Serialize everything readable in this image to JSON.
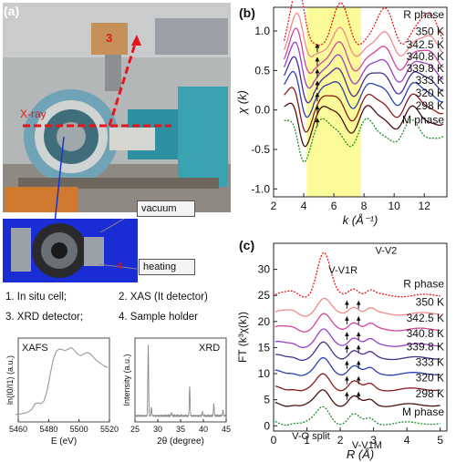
{
  "panel_a": {
    "label": "(a)",
    "photo_labels": {
      "detector_num": "3",
      "xray": "X-ray"
    },
    "cell_labels": {
      "vacuum": "vacuum",
      "heating": "heating",
      "num4": "4"
    },
    "legend": [
      "1. In situ cell;",
      "2. XAS (It detector)",
      "3. XRD detector;",
      "4. Sample holder"
    ],
    "colors": {
      "photo_bg": "#a9acad",
      "cell_bg": "#1a2cd4",
      "arrow": "#e4161c"
    }
  },
  "panel_b": {
    "label": "(b)"
  },
  "panel_c": {
    "label": "(c)"
  },
  "chart_data": [
    {
      "type": "line",
      "id": "xafs",
      "title": "XAFS",
      "xlabel": "E (eV)",
      "ylabel": "ln(I0/I1) (a.u.)",
      "xlim": [
        5460,
        5520
      ],
      "xticks": [
        "5460",
        "5480",
        "5500",
        "5520"
      ],
      "series": [
        {
          "x": [
            5458,
            5462,
            5466,
            5469,
            5471,
            5473,
            5475,
            5477,
            5479,
            5481,
            5483,
            5485,
            5487,
            5489,
            5491,
            5493,
            5495,
            5497,
            5499,
            5501,
            5503,
            5505,
            5507,
            5509,
            5511,
            5513,
            5515,
            5517,
            5519
          ],
          "y": [
            0.05,
            0.06,
            0.08,
            0.12,
            0.2,
            0.21,
            0.2,
            0.24,
            0.38,
            0.6,
            0.8,
            0.92,
            0.95,
            0.94,
            0.93,
            0.95,
            0.97,
            0.93,
            0.88,
            0.86,
            0.88,
            0.9,
            0.89,
            0.85,
            0.8,
            0.77,
            0.74,
            0.71,
            0.7
          ]
        }
      ],
      "colors": {
        "line": "#9a9a9a"
      }
    },
    {
      "type": "line",
      "id": "xrd",
      "title": "XRD",
      "xlabel": "2θ (degree)",
      "ylabel": "Intensity (a.u.)",
      "xlim": [
        25,
        45
      ],
      "xticks": [
        "25",
        "30",
        "35",
        "40",
        "45"
      ],
      "peaks": [
        {
          "x": 27.9,
          "h": 1.0
        },
        {
          "x": 28.6,
          "h": 0.12
        },
        {
          "x": 33.0,
          "h": 0.05
        },
        {
          "x": 37.0,
          "h": 0.42
        },
        {
          "x": 39.8,
          "h": 0.06
        },
        {
          "x": 42.3,
          "h": 0.17
        },
        {
          "x": 44.3,
          "h": 0.08
        }
      ],
      "colors": {
        "line": "#8a8a8a"
      }
    },
    {
      "type": "line",
      "id": "exafs_k",
      "xlabel": "k (Å⁻¹)",
      "ylabel": "χ (k)",
      "xlim": [
        2,
        13.5
      ],
      "ylim": [
        -1.1,
        1.3
      ],
      "xticks": [
        "2",
        "4",
        "6",
        "8",
        "10",
        "12"
      ],
      "yticks": [
        "-1.0",
        "-0.5",
        "0.0",
        "0.5",
        "1.0"
      ],
      "shaded_region": [
        4.2,
        7.8
      ],
      "series": [
        {
          "name": "R phase",
          "color": "#e8191b",
          "offset": 1.05
        },
        {
          "name": "350 K",
          "color": "#f08a8a",
          "offset": 0.84
        },
        {
          "name": "342.5 K",
          "color": "#d2459a",
          "offset": 0.67
        },
        {
          "name": "340.8 K",
          "color": "#9a3fc8",
          "offset": 0.52
        },
        {
          "name": "339.8 K",
          "color": "#4a2e8f",
          "offset": 0.37
        },
        {
          "name": "333 K",
          "color": "#2a3fb0",
          "offset": 0.22
        },
        {
          "name": "320 K",
          "color": "#8b1a1a",
          "offset": 0.06
        },
        {
          "name": "298 K",
          "color": "#4b1010",
          "offset": -0.1
        },
        {
          "name": "M phase",
          "color": "#1a8f2a",
          "offset": -0.28
        }
      ],
      "colors": {
        "shade": "#fbfb9a"
      }
    },
    {
      "type": "line",
      "id": "ft",
      "xlabel": "R (Å)",
      "ylabel": "FT (k³χ(k))",
      "xlim": [
        0,
        5.2
      ],
      "ylim": [
        -1,
        35
      ],
      "xticks": [
        "0",
        "1",
        "2",
        "3",
        "4",
        "5"
      ],
      "yticks": [
        "0",
        "5",
        "10",
        "15",
        "20",
        "25",
        "30"
      ],
      "annotations": [
        "V-V2",
        "V-V1R",
        "V-O split",
        "V-V1M"
      ],
      "series": [
        {
          "name": "R phase",
          "color": "#e8191b",
          "offset": 25
        },
        {
          "name": "350 K",
          "color": "#f08a8a",
          "offset": 21.5
        },
        {
          "name": "342.5 K",
          "color": "#d2459a",
          "offset": 18.5
        },
        {
          "name": "340.8 K",
          "color": "#9a3fc8",
          "offset": 15.5
        },
        {
          "name": "339.8 K",
          "color": "#4a2e8f",
          "offset": 13
        },
        {
          "name": "333 K",
          "color": "#2a3fb0",
          "offset": 10
        },
        {
          "name": "320 K",
          "color": "#8b1a1a",
          "offset": 7
        },
        {
          "name": "298 K",
          "color": "#4b1010",
          "offset": 4
        },
        {
          "name": "M phase",
          "color": "#1a8f2a",
          "offset": 0.5
        }
      ]
    }
  ]
}
